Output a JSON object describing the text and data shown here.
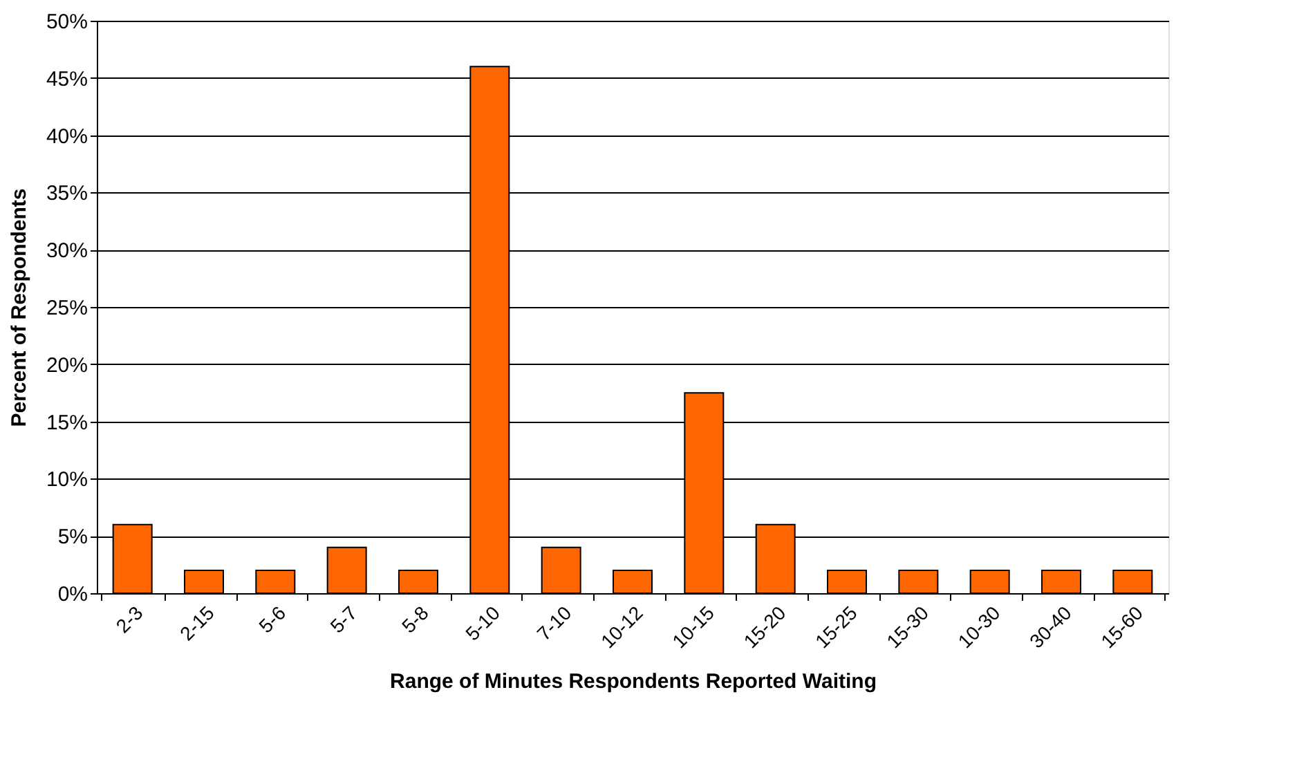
{
  "chart_data": {
    "type": "bar",
    "xlabel": "Range of Minutes Respondents Reported Waiting",
    "ylabel": "Percent of Respondents",
    "categories": [
      "2-3",
      "2-15",
      "5-6",
      "5-7",
      "5-8",
      "5-10",
      "7-10",
      "10-12",
      "10-15",
      "15-20",
      "15-25",
      "15-30",
      "10-30",
      "30-40",
      "15-60"
    ],
    "values": [
      6,
      2,
      2,
      4,
      2,
      46,
      4,
      2,
      17.5,
      6,
      2,
      2,
      2,
      2,
      2
    ],
    "color": "#ff6600",
    "ylim": [
      0,
      50
    ],
    "yticks": [
      {
        "value": 0,
        "label": "0%"
      },
      {
        "value": 5,
        "label": "5%"
      },
      {
        "value": 10,
        "label": "10%"
      },
      {
        "value": 15,
        "label": "15%"
      },
      {
        "value": 20,
        "label": "20%"
      },
      {
        "value": 25,
        "label": "25%"
      },
      {
        "value": 30,
        "label": "30%"
      },
      {
        "value": 35,
        "label": "35%"
      },
      {
        "value": 40,
        "label": "40%"
      },
      {
        "value": 45,
        "label": "45%"
      },
      {
        "value": 50,
        "label": "50%"
      }
    ],
    "grid": "y"
  }
}
